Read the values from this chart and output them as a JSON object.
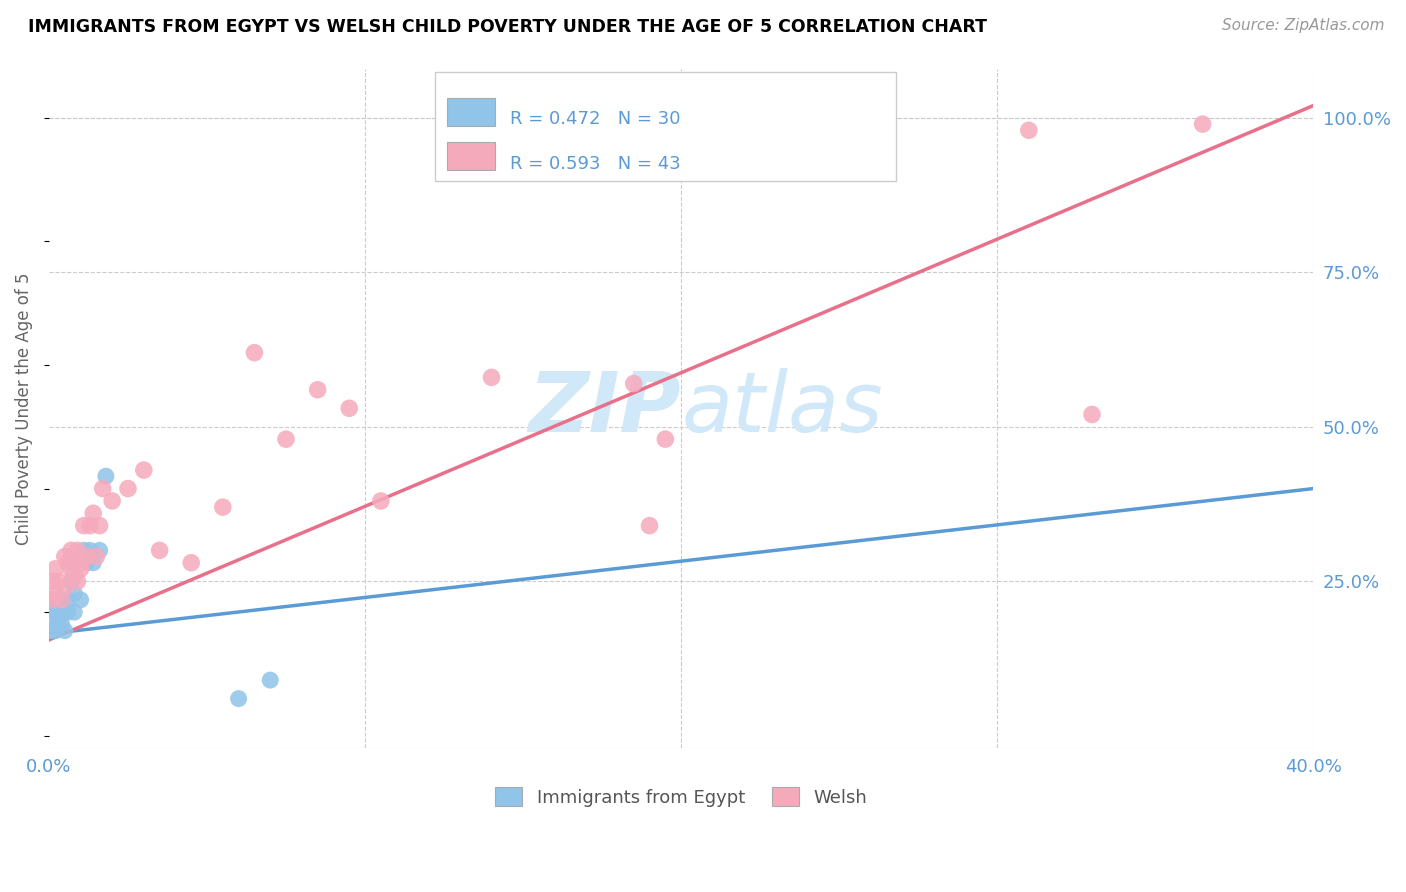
{
  "title": "IMMIGRANTS FROM EGYPT VS WELSH CHILD POVERTY UNDER THE AGE OF 5 CORRELATION CHART",
  "source": "Source: ZipAtlas.com",
  "ylabel": "Child Poverty Under the Age of 5",
  "ytick_labels": [
    "100.0%",
    "75.0%",
    "50.0%",
    "25.0%"
  ],
  "ytick_values": [
    1.0,
    0.75,
    0.5,
    0.25
  ],
  "xlim": [
    0.0,
    0.4
  ],
  "ylim": [
    -0.02,
    1.08
  ],
  "legend_blue_r": "R = 0.472",
  "legend_blue_n": "N = 30",
  "legend_pink_r": "R = 0.593",
  "legend_pink_n": "N = 43",
  "legend_label_blue": "Immigrants from Egypt",
  "legend_label_pink": "Welsh",
  "blue_color": "#90C4E8",
  "pink_color": "#F5AABC",
  "blue_line_color": "#5B9BD5",
  "pink_line_color": "#E8708A",
  "dashed_line_color": "#AAAAAA",
  "text_blue_color": "#5B9BD5",
  "watermark_color": "#D0E8F8",
  "blue_scatter_x": [
    0.001,
    0.001,
    0.001,
    0.002,
    0.002,
    0.002,
    0.003,
    0.003,
    0.003,
    0.003,
    0.004,
    0.004,
    0.004,
    0.005,
    0.005,
    0.006,
    0.006,
    0.007,
    0.008,
    0.008,
    0.009,
    0.01,
    0.011,
    0.012,
    0.013,
    0.014,
    0.016,
    0.018,
    0.06,
    0.07
  ],
  "blue_scatter_y": [
    0.17,
    0.19,
    0.21,
    0.17,
    0.2,
    0.22,
    0.18,
    0.2,
    0.22,
    0.19,
    0.18,
    0.21,
    0.22,
    0.17,
    0.2,
    0.22,
    0.2,
    0.25,
    0.23,
    0.2,
    0.28,
    0.22,
    0.3,
    0.28,
    0.3,
    0.28,
    0.3,
    0.42,
    0.06,
    0.09
  ],
  "pink_scatter_x": [
    0.001,
    0.001,
    0.002,
    0.002,
    0.003,
    0.004,
    0.005,
    0.005,
    0.006,
    0.007,
    0.007,
    0.008,
    0.008,
    0.009,
    0.009,
    0.01,
    0.01,
    0.011,
    0.012,
    0.013,
    0.014,
    0.015,
    0.016,
    0.017,
    0.02,
    0.025,
    0.03,
    0.035,
    0.045,
    0.055,
    0.065,
    0.075,
    0.085,
    0.095,
    0.105,
    0.14,
    0.185,
    0.19,
    0.195,
    0.2,
    0.31,
    0.33,
    0.365
  ],
  "pink_scatter_y": [
    0.22,
    0.25,
    0.23,
    0.27,
    0.25,
    0.22,
    0.24,
    0.29,
    0.28,
    0.27,
    0.3,
    0.28,
    0.26,
    0.3,
    0.25,
    0.27,
    0.28,
    0.34,
    0.29,
    0.34,
    0.36,
    0.29,
    0.34,
    0.4,
    0.38,
    0.4,
    0.43,
    0.3,
    0.28,
    0.37,
    0.62,
    0.48,
    0.56,
    0.53,
    0.38,
    0.58,
    0.57,
    0.34,
    0.48,
    0.98,
    0.98,
    0.52,
    0.99
  ],
  "blue_line_x": [
    0.0,
    0.4
  ],
  "blue_line_y": [
    0.165,
    0.4
  ],
  "pink_line_x": [
    0.0,
    0.4
  ],
  "pink_line_y": [
    0.155,
    1.02
  ],
  "dashed_line_x": [
    0.0,
    0.4
  ],
  "dashed_line_y": [
    0.155,
    1.02
  ]
}
